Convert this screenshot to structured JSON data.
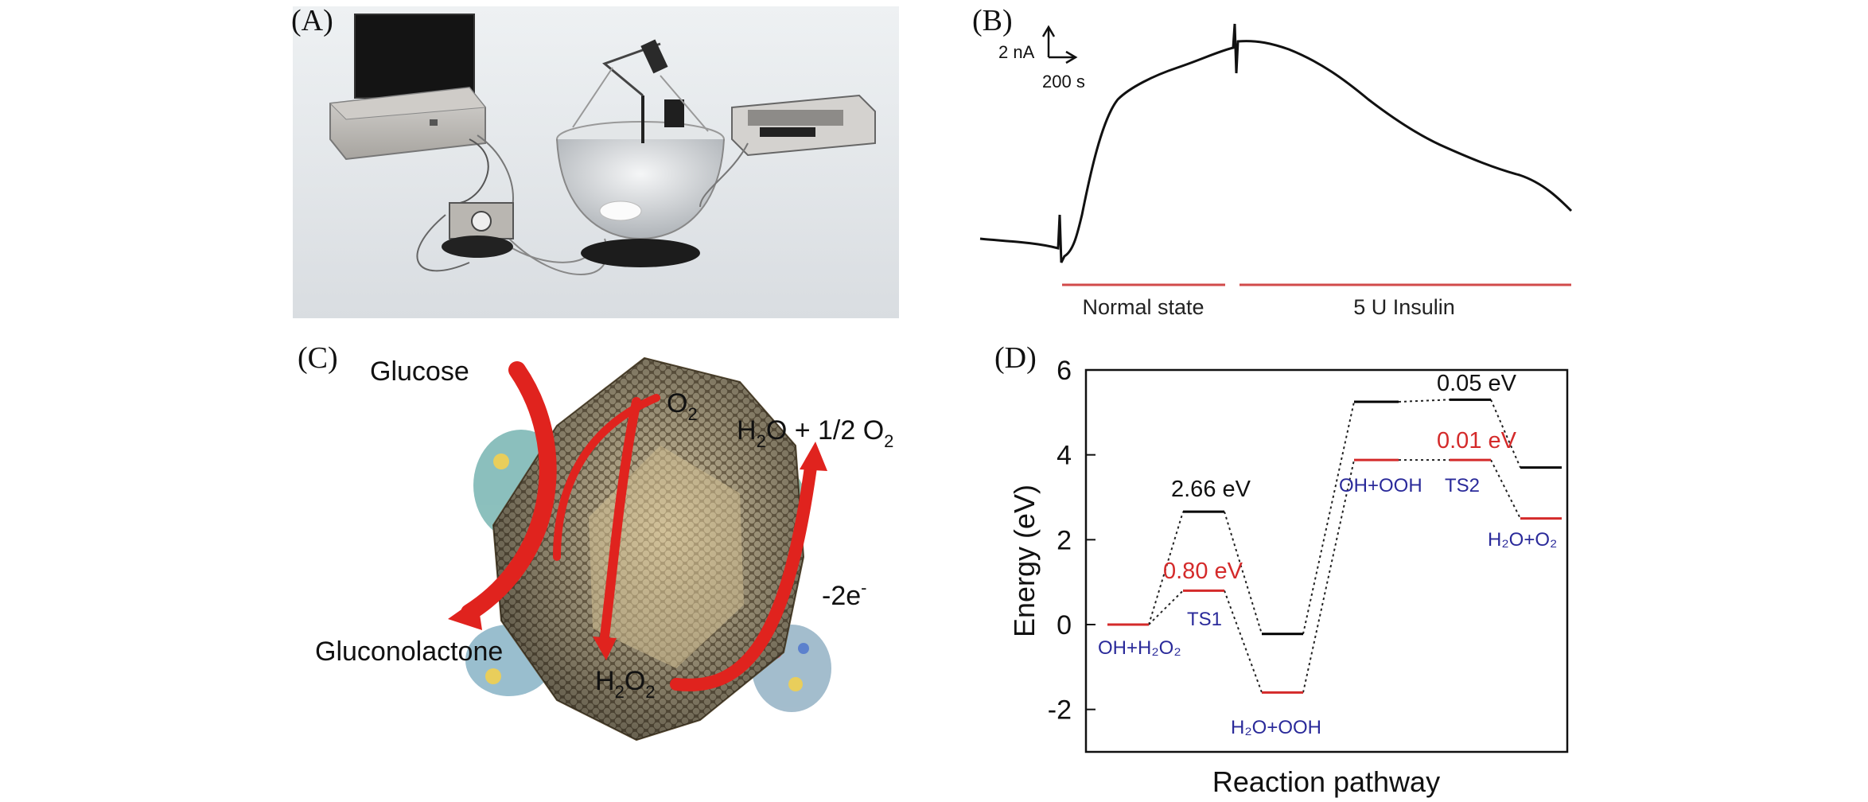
{
  "panels": {
    "a": {
      "label": "(A)"
    },
    "b": {
      "label": "(B)",
      "scalebar_y": "2 nA",
      "scalebar_x": "200 s",
      "segments": [
        "Normal state",
        "5 U Insulin"
      ],
      "segment_color": "#d24a4a"
    },
    "c": {
      "label": "(C)",
      "glucose": "Glucose",
      "o2": "O",
      "o2_sub": "2",
      "product_h2o": "H",
      "product_h2o_sub": "2",
      "product_rest": "O + 1/2 O",
      "product_rest_sub": "2",
      "electrons": "-2e",
      "electrons_sup": "-",
      "gluconolactone": "Gluconolactone",
      "h2o2_h": "H",
      "h2o2_sub1": "2",
      "h2o2_o": "O",
      "h2o2_sub2": "2",
      "arrow_color": "#e0231e"
    },
    "d": {
      "label": "(D)"
    }
  },
  "chart_data": {
    "type": "line",
    "xlabel": "Reaction pathway",
    "ylabel": "Energy (eV)",
    "ylim": [
      -3,
      6
    ],
    "yticks": [
      6,
      4,
      2,
      0,
      -2
    ],
    "series": [
      {
        "color": "#000000",
        "levels": [
          0.0,
          2.66,
          -0.22,
          5.25,
          5.3,
          3.7
        ]
      },
      {
        "color": "#d42a2a",
        "levels": [
          0.0,
          0.8,
          -1.6,
          3.88,
          3.88,
          2.5
        ]
      }
    ],
    "state_labels": [
      "OH+H₂O₂",
      "TS1",
      "H₂O+OOH",
      "OH+OOH",
      "TS2",
      "H₂O+O₂"
    ],
    "barrier_labels_black": [
      "2.66 eV",
      "0.05 eV"
    ],
    "barrier_labels_red": [
      "0.80 eV",
      "0.01 eV"
    ],
    "state_label_color": "#2a2a9a"
  }
}
